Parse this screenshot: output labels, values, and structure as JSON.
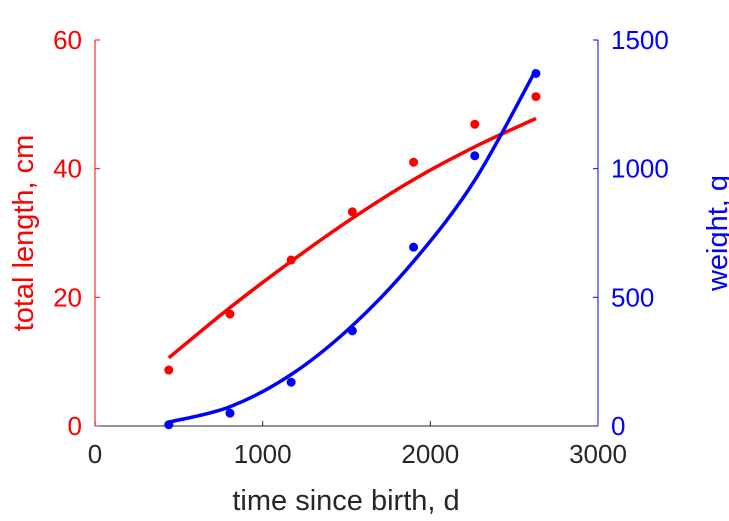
{
  "chart_data": {
    "type": "scatter",
    "xlabel": "time since birth, d",
    "ylabel_left": "total length, cm",
    "ylabel_right": "weight, g",
    "xlim": [
      0,
      3000
    ],
    "ylim_left": [
      0,
      60
    ],
    "ylim_right": [
      0,
      1500
    ],
    "x_ticks": [
      0,
      1000,
      2000,
      3000
    ],
    "y_ticks_left": [
      0,
      20,
      40,
      60
    ],
    "y_ticks_right": [
      0,
      500,
      1000,
      1500
    ],
    "grid": false,
    "colors": {
      "left": "#ff0000",
      "right": "#0000ff",
      "xaxis": "#262626"
    },
    "series": [
      {
        "axis": "left",
        "color": "#ff0000",
        "points": {
          "x": [
            440,
            805,
            1170,
            1535,
            1900,
            2265,
            2630
          ],
          "y": [
            8.7,
            17.4,
            25.8,
            33.3,
            41.0,
            46.9,
            51.2
          ]
        },
        "fit": {
          "x": [
            440,
            805,
            1170,
            1535,
            1900,
            2265,
            2630
          ],
          "y": [
            10.6,
            18.4,
            25.6,
            32.3,
            38.3,
            43.4,
            47.8
          ]
        }
      },
      {
        "axis": "right",
        "color": "#0000ff",
        "points": {
          "x": [
            440,
            805,
            1170,
            1535,
            1900,
            2265,
            2630
          ],
          "y": [
            5,
            50,
            170,
            370,
            695,
            1050,
            1370
          ]
        },
        "fit": {
          "x": [
            440,
            805,
            1170,
            1535,
            1900,
            2265,
            2630
          ],
          "y": [
            15,
            75,
            200,
            390,
            640,
            955,
            1385
          ]
        }
      }
    ]
  }
}
